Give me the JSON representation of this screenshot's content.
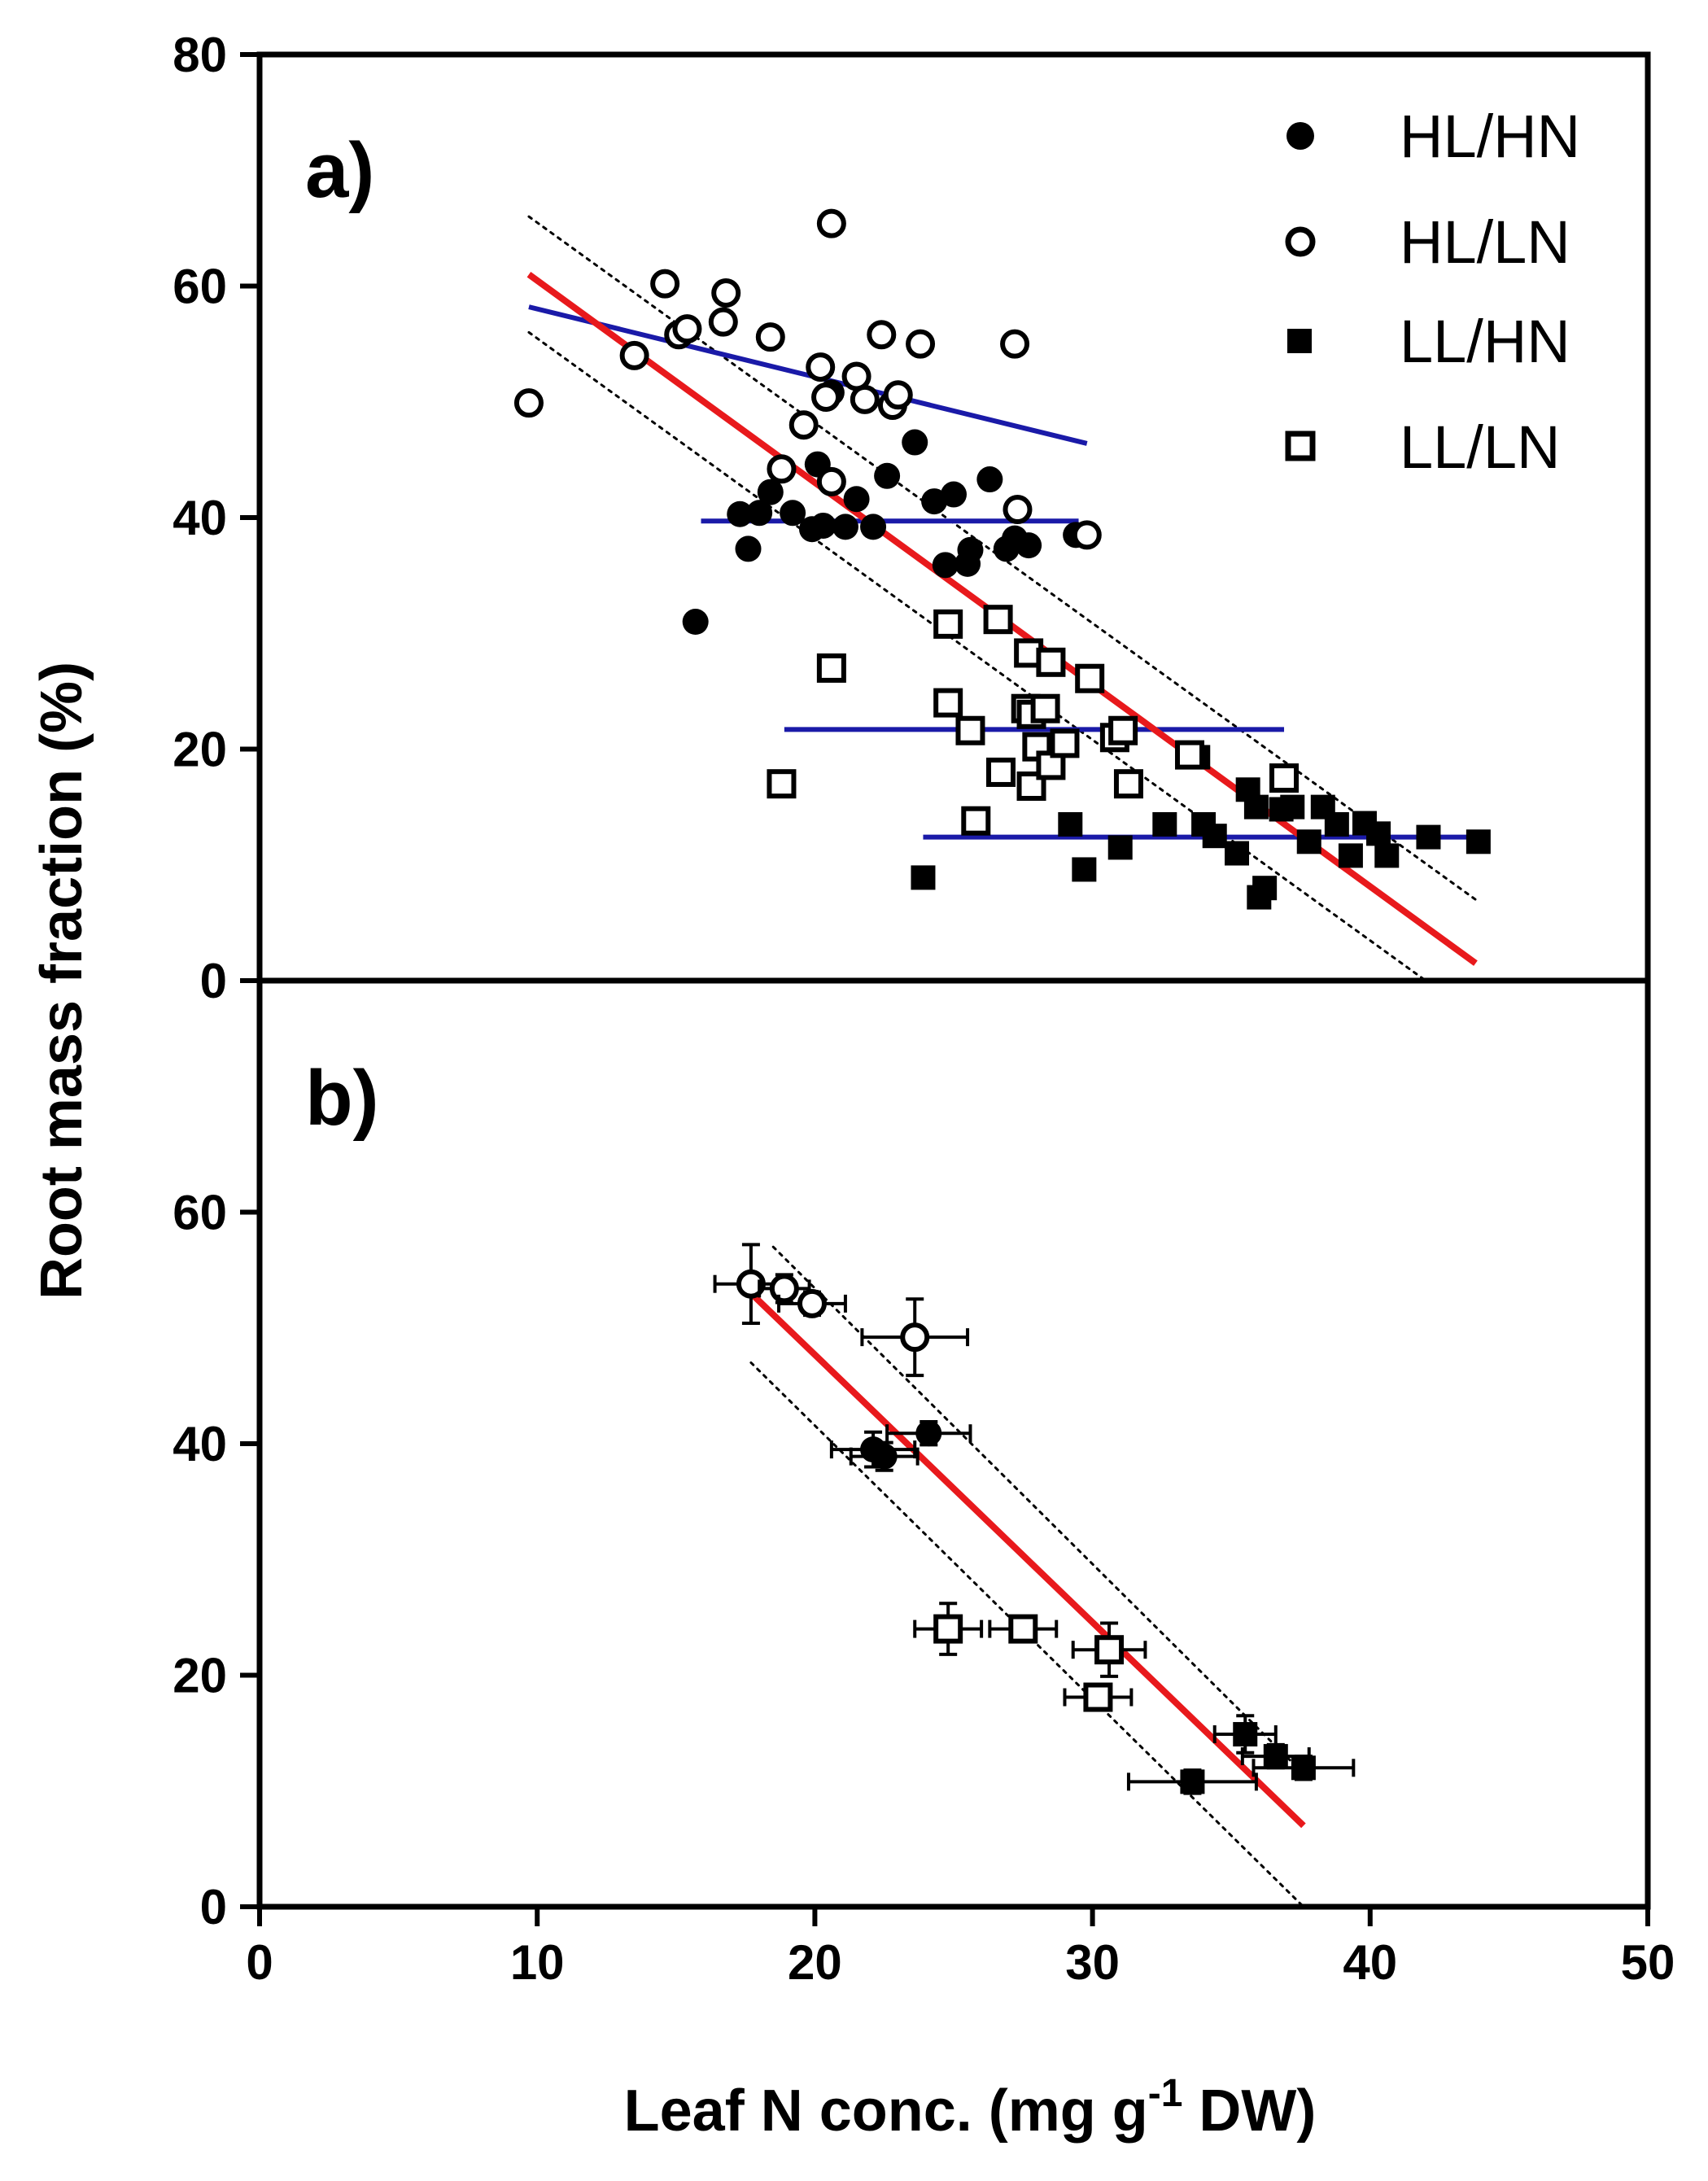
{
  "chart_data": {
    "type": "scatter",
    "xlabel_main": "Leaf N conc. (mg g",
    "xlabel_sup": "-1",
    "xlabel_tail": " DW)",
    "ylabel": "Root mass fraction (%)",
    "xlim": [
      0,
      50
    ],
    "xticks": [
      0,
      10,
      20,
      30,
      40,
      50
    ],
    "legend": {
      "position": "top-right",
      "entries": [
        {
          "key": "HLHN",
          "label": "HL/HN",
          "marker": "circle",
          "filled": true
        },
        {
          "key": "HLLN",
          "label": "HL/LN",
          "marker": "circle",
          "filled": false
        },
        {
          "key": "LLHN",
          "label": "LL/HN",
          "marker": "square",
          "filled": true
        },
        {
          "key": "LLLN",
          "label": "LL/LN",
          "marker": "square",
          "filled": false
        }
      ]
    },
    "colors": {
      "overall_fit": "#e8191c",
      "group_fit": "#1a1aa8",
      "points": "#000000",
      "confidence": "#000000"
    },
    "panels": [
      {
        "label": "a)",
        "ylim": [
          0,
          80
        ],
        "yticks": [
          0,
          20,
          40,
          60,
          80
        ],
        "series": [
          {
            "name": "HL/HN",
            "points": [
              [
                15.7,
                31
              ],
              [
                17.3,
                40.3
              ],
              [
                17.6,
                37.3
              ],
              [
                18,
                40.4
              ],
              [
                18.4,
                42.2
              ],
              [
                19.2,
                40.4
              ],
              [
                19.9,
                39
              ],
              [
                20.1,
                44.6
              ],
              [
                20.3,
                39.3
              ],
              [
                20.6,
                50.8
              ],
              [
                21.1,
                39.2
              ],
              [
                21.5,
                41.6
              ],
              [
                22.1,
                39.2
              ],
              [
                22.6,
                43.6
              ],
              [
                23.6,
                46.5
              ],
              [
                24.3,
                41.4
              ],
              [
                24.7,
                35.9
              ],
              [
                25,
                42
              ],
              [
                25.5,
                36
              ],
              [
                25.6,
                37.2
              ],
              [
                26.3,
                43.3
              ],
              [
                26.9,
                37.3
              ],
              [
                27.2,
                38.2
              ],
              [
                27.7,
                37.6
              ],
              [
                29.4,
                38.5
              ]
            ]
          },
          {
            "name": "HL/LN",
            "points": [
              [
                9.7,
                49.9
              ],
              [
                13.5,
                54
              ],
              [
                14.6,
                60.2
              ],
              [
                15.1,
                55.8
              ],
              [
                15.4,
                56.3
              ],
              [
                16.7,
                56.9
              ],
              [
                16.8,
                59.4
              ],
              [
                18.4,
                55.6
              ],
              [
                18.8,
                44.2
              ],
              [
                19.6,
                48
              ],
              [
                20.2,
                53
              ],
              [
                20.4,
                50.4
              ],
              [
                20.6,
                43.1
              ],
              [
                20.6,
                65.4
              ],
              [
                21.5,
                52.2
              ],
              [
                21.8,
                50.2
              ],
              [
                22.4,
                55.8
              ],
              [
                22.8,
                49.7
              ],
              [
                23,
                50.6
              ],
              [
                23.8,
                55
              ],
              [
                27.2,
                55
              ],
              [
                27.3,
                40.7
              ],
              [
                29.8,
                38.5
              ]
            ]
          },
          {
            "name": "LL/HN",
            "points": [
              [
                23.9,
                8.9
              ],
              [
                29.2,
                13.5
              ],
              [
                29.7,
                9.6
              ],
              [
                31,
                11.5
              ],
              [
                32.6,
                13.5
              ],
              [
                33.8,
                19.3
              ],
              [
                34,
                13.5
              ],
              [
                34.4,
                12.5
              ],
              [
                35.2,
                11
              ],
              [
                35.6,
                16.5
              ],
              [
                35.9,
                15
              ],
              [
                36,
                7.2
              ],
              [
                36.2,
                8
              ],
              [
                36.8,
                14.8
              ],
              [
                37.2,
                15
              ],
              [
                37.8,
                12
              ],
              [
                38.3,
                15
              ],
              [
                38.8,
                13.5
              ],
              [
                39.3,
                10.8
              ],
              [
                39.8,
                13.6
              ],
              [
                40.3,
                12.7
              ],
              [
                40.6,
                10.8
              ],
              [
                42.1,
                12.4
              ],
              [
                43.9,
                12
              ]
            ]
          },
          {
            "name": "LL/LN",
            "points": [
              [
                18.8,
                17
              ],
              [
                20.6,
                27
              ],
              [
                24.8,
                30.8
              ],
              [
                24.8,
                24
              ],
              [
                25.6,
                21.6
              ],
              [
                25.8,
                13.8
              ],
              [
                26.6,
                31.2
              ],
              [
                26.7,
                18
              ],
              [
                27.6,
                23.5
              ],
              [
                27.7,
                28.3
              ],
              [
                27.8,
                16.8
              ],
              [
                27.8,
                23
              ],
              [
                28,
                20.2
              ],
              [
                28.3,
                23.5
              ],
              [
                28.5,
                27.5
              ],
              [
                28.5,
                18.6
              ],
              [
                29,
                20.5
              ],
              [
                29.9,
                26.1
              ],
              [
                30.8,
                21
              ],
              [
                31.1,
                21.6
              ],
              [
                31.3,
                17
              ],
              [
                33.5,
                19.5
              ],
              [
                36.9,
                17.5
              ]
            ]
          }
        ],
        "fit_lines": [
          {
            "kind": "overall",
            "x": [
              9.7,
              43.8
            ],
            "y": [
              61,
              1.5
            ]
          },
          {
            "kind": "overall_ci_upper",
            "x": [
              9.7,
              43.8
            ],
            "y": [
              66,
              7
            ]
          },
          {
            "kind": "overall_ci_lower",
            "x": [
              9.7,
              42
            ],
            "y": [
              56,
              0
            ]
          },
          {
            "kind": "group",
            "name": "HL/LN",
            "x": [
              9.7,
              29.8
            ],
            "y": [
              58.2,
              46.4
            ]
          },
          {
            "kind": "group",
            "name": "HL/HN",
            "x": [
              15.9,
              29.5
            ],
            "y": [
              39.7,
              39.7
            ]
          },
          {
            "kind": "group",
            "name": "LL/LN",
            "x": [
              18.9,
              36.9
            ],
            "y": [
              21.7,
              21.7
            ]
          },
          {
            "kind": "group",
            "name": "LL/HN",
            "x": [
              23.9,
              43.8
            ],
            "y": [
              12.4,
              12.4
            ]
          }
        ]
      },
      {
        "label": "b)",
        "ylim": [
          0,
          80
        ],
        "yticks": [
          0,
          20,
          40,
          60
        ],
        "series": [
          {
            "name": "HL/HN",
            "points": [
              [
                22.1,
                39.5,
                1.5,
                1.5
              ],
              [
                22.5,
                38.9,
                1.2,
                1.2
              ],
              [
                24.1,
                40.9,
                1.5,
                1
              ]
            ]
          },
          {
            "name": "HL/LN",
            "points": [
              [
                17.7,
                53.8,
                1.3,
                3.4
              ],
              [
                18.9,
                53.4,
                0.9,
                1.2
              ],
              [
                19.9,
                52.1,
                1.2,
                1
              ],
              [
                23.6,
                49.2,
                1.9,
                3.3
              ]
            ]
          },
          {
            "name": "LL/HN",
            "points": [
              [
                33.6,
                10.8,
                2.3,
                1
              ],
              [
                35.5,
                14.9,
                1.1,
                1.6
              ],
              [
                36.6,
                13,
                1.2,
                1
              ],
              [
                37.6,
                12,
                1.8,
                1
              ]
            ]
          },
          {
            "name": "LL/LN",
            "points": [
              [
                24.8,
                24,
                1.2,
                2.2
              ],
              [
                27.5,
                24,
                1.2,
                1
              ],
              [
                30.2,
                18.1,
                1.2,
                1
              ],
              [
                30.6,
                22.2,
                1.3,
                2.3
              ]
            ]
          }
        ],
        "fit_lines": [
          {
            "kind": "overall",
            "x": [
              17.7,
              37.6
            ],
            "y": [
              53,
              7
            ]
          },
          {
            "kind": "overall_ci_upper",
            "x": [
              18.5,
              37.6
            ],
            "y": [
              57,
              11.5
            ]
          },
          {
            "kind": "overall_ci_lower",
            "x": [
              17.7,
              37.6
            ],
            "y": [
              47,
              0
            ]
          }
        ]
      }
    ]
  }
}
